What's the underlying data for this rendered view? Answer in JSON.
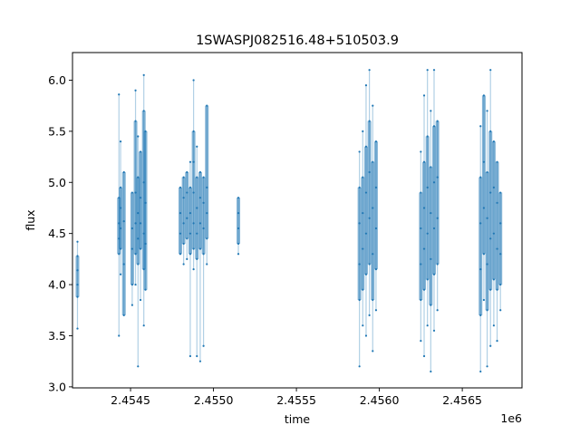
{
  "chart_data": {
    "type": "scatter",
    "title": "1SWASPJ082516.48+510503.9",
    "xlabel": "time",
    "ylabel": "flux",
    "x_offset_label": "1e6",
    "x_scale": 1000000,
    "xlim": [
      2454150,
      2456860
    ],
    "ylim": [
      2.99,
      6.27
    ],
    "x_ticks": [
      {
        "value": 2454500,
        "label": "2.4545"
      },
      {
        "value": 2455000,
        "label": "2.4550"
      },
      {
        "value": 2455500,
        "label": "2.4555"
      },
      {
        "value": 2456000,
        "label": "2.4560"
      },
      {
        "value": 2456500,
        "label": "2.4565"
      }
    ],
    "y_ticks": [
      {
        "value": 3.0,
        "label": "3.0"
      },
      {
        "value": 3.5,
        "label": "3.5"
      },
      {
        "value": 4.0,
        "label": "4.0"
      },
      {
        "value": 4.5,
        "label": "4.5"
      },
      {
        "value": 5.0,
        "label": "5.0"
      },
      {
        "value": 5.5,
        "label": "5.5"
      },
      {
        "value": 6.0,
        "label": "6.0"
      }
    ],
    "grid": false,
    "marker_color": "#1f77b4",
    "series": [
      {
        "points": [
          [
            2454180,
            4.42
          ],
          [
            2454180,
            4.28
          ],
          [
            2454180,
            4.14
          ],
          [
            2454180,
            4.0
          ],
          [
            2454180,
            3.88
          ],
          [
            2454180,
            3.57
          ],
          [
            2454430,
            4.85
          ],
          [
            2454430,
            4.6
          ],
          [
            2454430,
            4.45
          ],
          [
            2454430,
            4.3
          ],
          [
            2454430,
            5.86
          ],
          [
            2454430,
            3.5
          ],
          [
            2454440,
            5.4
          ],
          [
            2454440,
            4.95
          ],
          [
            2454440,
            4.75
          ],
          [
            2454440,
            4.55
          ],
          [
            2454440,
            4.35
          ],
          [
            2454440,
            4.1
          ],
          [
            2454460,
            4.62
          ],
          [
            2454460,
            4.2
          ],
          [
            2454460,
            5.1
          ],
          [
            2454460,
            3.7
          ],
          [
            2454510,
            4.55
          ],
          [
            2454510,
            4.35
          ],
          [
            2454510,
            4.0
          ],
          [
            2454510,
            3.8
          ],
          [
            2454510,
            4.9
          ],
          [
            2454530,
            5.6
          ],
          [
            2454530,
            4.9
          ],
          [
            2454530,
            4.6
          ],
          [
            2454530,
            4.3
          ],
          [
            2454530,
            4.0
          ],
          [
            2454530,
            5.9
          ],
          [
            2454545,
            5.45
          ],
          [
            2454545,
            5.05
          ],
          [
            2454545,
            4.7
          ],
          [
            2454545,
            4.45
          ],
          [
            2454545,
            4.2
          ],
          [
            2454545,
            3.2
          ],
          [
            2454560,
            5.3
          ],
          [
            2454560,
            4.85
          ],
          [
            2454560,
            4.6
          ],
          [
            2454560,
            4.35
          ],
          [
            2454560,
            3.85
          ],
          [
            2454580,
            6.05
          ],
          [
            2454580,
            5.7
          ],
          [
            2454580,
            5.0
          ],
          [
            2454580,
            4.5
          ],
          [
            2454580,
            4.15
          ],
          [
            2454580,
            3.6
          ],
          [
            2454590,
            5.5
          ],
          [
            2454590,
            4.8
          ],
          [
            2454590,
            4.4
          ],
          [
            2454590,
            3.95
          ],
          [
            2454800,
            4.95
          ],
          [
            2454800,
            4.7
          ],
          [
            2454800,
            4.5
          ],
          [
            2454800,
            4.3
          ],
          [
            2454820,
            5.05
          ],
          [
            2454820,
            4.85
          ],
          [
            2454820,
            4.6
          ],
          [
            2454820,
            4.4
          ],
          [
            2454820,
            4.2
          ],
          [
            2454840,
            5.1
          ],
          [
            2454840,
            4.9
          ],
          [
            2454840,
            4.65
          ],
          [
            2454840,
            4.45
          ],
          [
            2454840,
            4.25
          ],
          [
            2454860,
            5.2
          ],
          [
            2454860,
            4.95
          ],
          [
            2454860,
            4.7
          ],
          [
            2454860,
            4.5
          ],
          [
            2454860,
            4.3
          ],
          [
            2454860,
            3.3
          ],
          [
            2454880,
            5.5
          ],
          [
            2454880,
            5.2
          ],
          [
            2454880,
            4.9
          ],
          [
            2454880,
            4.6
          ],
          [
            2454880,
            4.35
          ],
          [
            2454880,
            4.15
          ],
          [
            2454880,
            6.0
          ],
          [
            2454900,
            5.35
          ],
          [
            2454900,
            5.05
          ],
          [
            2454900,
            4.75
          ],
          [
            2454900,
            4.5
          ],
          [
            2454900,
            4.25
          ],
          [
            2454900,
            3.3
          ],
          [
            2454920,
            5.1
          ],
          [
            2454920,
            4.85
          ],
          [
            2454920,
            4.6
          ],
          [
            2454920,
            4.35
          ],
          [
            2454920,
            3.25
          ],
          [
            2454940,
            5.05
          ],
          [
            2454940,
            4.8
          ],
          [
            2454940,
            4.55
          ],
          [
            2454940,
            4.3
          ],
          [
            2454940,
            3.4
          ],
          [
            2454960,
            5.75
          ],
          [
            2454960,
            4.95
          ],
          [
            2454960,
            4.7
          ],
          [
            2454960,
            4.45
          ],
          [
            2454960,
            4.2
          ],
          [
            2455150,
            4.85
          ],
          [
            2455150,
            4.7
          ],
          [
            2455150,
            4.55
          ],
          [
            2455150,
            4.4
          ],
          [
            2455150,
            4.3
          ],
          [
            2455880,
            5.3
          ],
          [
            2455880,
            4.95
          ],
          [
            2455880,
            4.6
          ],
          [
            2455880,
            4.2
          ],
          [
            2455880,
            3.85
          ],
          [
            2455880,
            3.2
          ],
          [
            2455900,
            5.5
          ],
          [
            2455900,
            5.05
          ],
          [
            2455900,
            4.7
          ],
          [
            2455900,
            4.35
          ],
          [
            2455900,
            3.95
          ],
          [
            2455900,
            3.6
          ],
          [
            2455920,
            5.95
          ],
          [
            2455920,
            5.35
          ],
          [
            2455920,
            4.9
          ],
          [
            2455920,
            4.5
          ],
          [
            2455920,
            4.1
          ],
          [
            2455920,
            3.5
          ],
          [
            2455940,
            6.1
          ],
          [
            2455940,
            5.6
          ],
          [
            2455940,
            5.1
          ],
          [
            2455940,
            4.65
          ],
          [
            2455940,
            4.2
          ],
          [
            2455940,
            3.7
          ],
          [
            2455960,
            5.75
          ],
          [
            2455960,
            5.2
          ],
          [
            2455960,
            4.75
          ],
          [
            2455960,
            4.3
          ],
          [
            2455960,
            3.85
          ],
          [
            2455960,
            3.35
          ],
          [
            2455980,
            5.4
          ],
          [
            2455980,
            4.95
          ],
          [
            2455980,
            4.55
          ],
          [
            2455980,
            4.15
          ],
          [
            2455980,
            3.75
          ],
          [
            2456250,
            5.3
          ],
          [
            2456250,
            4.9
          ],
          [
            2456250,
            4.55
          ],
          [
            2456250,
            4.2
          ],
          [
            2456250,
            3.85
          ],
          [
            2456250,
            3.45
          ],
          [
            2456270,
            5.85
          ],
          [
            2456270,
            5.2
          ],
          [
            2456270,
            4.75
          ],
          [
            2456270,
            4.35
          ],
          [
            2456270,
            3.95
          ],
          [
            2456270,
            3.3
          ],
          [
            2456290,
            6.1
          ],
          [
            2456290,
            5.45
          ],
          [
            2456290,
            4.95
          ],
          [
            2456290,
            4.5
          ],
          [
            2456290,
            4.05
          ],
          [
            2456290,
            3.6
          ],
          [
            2456310,
            5.7
          ],
          [
            2456310,
            5.15
          ],
          [
            2456310,
            4.7
          ],
          [
            2456310,
            4.25
          ],
          [
            2456310,
            3.8
          ],
          [
            2456310,
            3.15
          ],
          [
            2456330,
            6.1
          ],
          [
            2456330,
            5.55
          ],
          [
            2456330,
            5.0
          ],
          [
            2456330,
            4.55
          ],
          [
            2456330,
            4.1
          ],
          [
            2456330,
            3.55
          ],
          [
            2456350,
            5.6
          ],
          [
            2456350,
            5.05
          ],
          [
            2456350,
            4.65
          ],
          [
            2456350,
            4.2
          ],
          [
            2456350,
            3.75
          ],
          [
            2456610,
            5.55
          ],
          [
            2456610,
            5.05
          ],
          [
            2456610,
            4.6
          ],
          [
            2456610,
            4.15
          ],
          [
            2456610,
            3.7
          ],
          [
            2456610,
            3.15
          ],
          [
            2456630,
            5.85
          ],
          [
            2456630,
            5.2
          ],
          [
            2456630,
            4.75
          ],
          [
            2456630,
            4.3
          ],
          [
            2456630,
            3.85
          ],
          [
            2456650,
            5.7
          ],
          [
            2456650,
            5.1
          ],
          [
            2456650,
            4.65
          ],
          [
            2456650,
            4.2
          ],
          [
            2456650,
            3.75
          ],
          [
            2456650,
            3.2
          ],
          [
            2456670,
            6.1
          ],
          [
            2456670,
            5.5
          ],
          [
            2456670,
            4.9
          ],
          [
            2456670,
            4.45
          ],
          [
            2456670,
            3.95
          ],
          [
            2456670,
            3.4
          ],
          [
            2456690,
            5.4
          ],
          [
            2456690,
            4.95
          ],
          [
            2456690,
            4.5
          ],
          [
            2456690,
            4.05
          ],
          [
            2456690,
            3.6
          ],
          [
            2456710,
            5.2
          ],
          [
            2456710,
            4.8
          ],
          [
            2456710,
            4.35
          ],
          [
            2456710,
            3.95
          ],
          [
            2456710,
            3.45
          ],
          [
            2456730,
            4.9
          ],
          [
            2456730,
            4.6
          ],
          [
            2456730,
            4.3
          ],
          [
            2456730,
            4.0
          ],
          [
            2456730,
            3.75
          ]
        ]
      }
    ]
  }
}
